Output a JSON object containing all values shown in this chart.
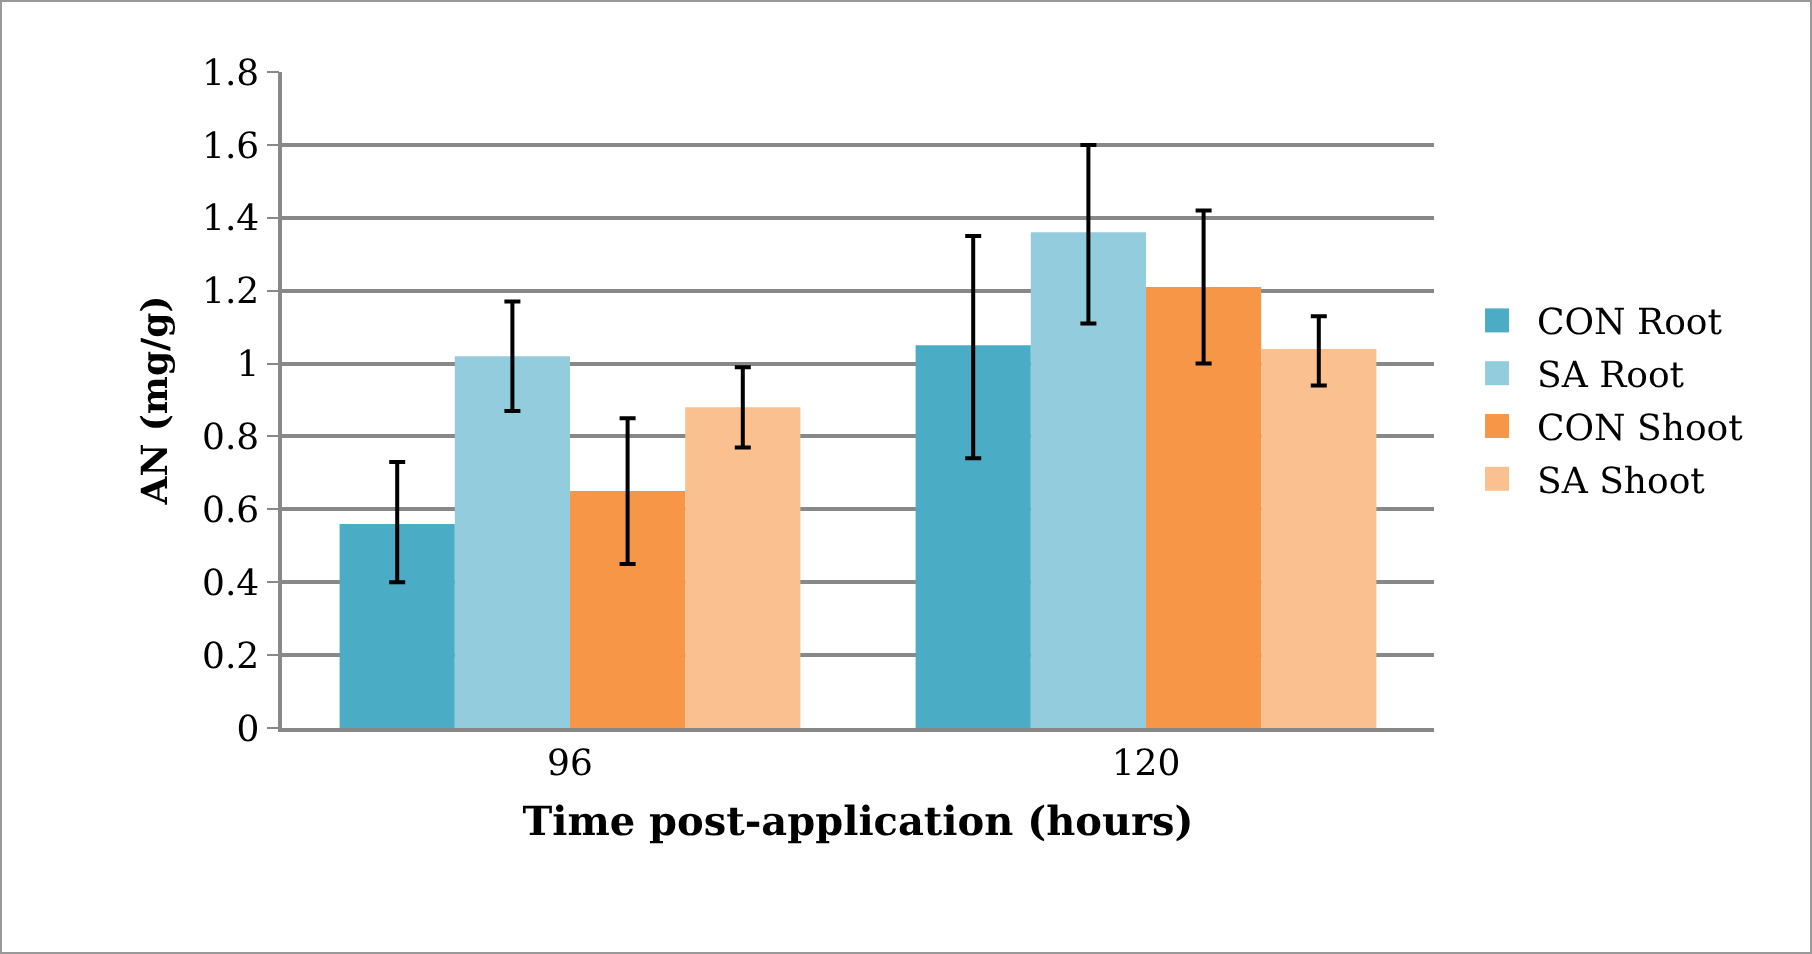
{
  "chart_data": {
    "type": "bar",
    "xlabel": "Time post-application (hours)",
    "ylabel": "AN (mg/g)",
    "categories": [
      "96",
      "120"
    ],
    "series": [
      {
        "name": "CON Root",
        "color": "#4bacc6",
        "values": [
          0.56,
          1.05
        ],
        "errors": [
          [
            0.4,
            0.73
          ],
          [
            0.74,
            1.35
          ]
        ]
      },
      {
        "name": "SA Root",
        "color": "#93cddd",
        "values": [
          1.02,
          1.36
        ],
        "errors": [
          [
            0.87,
            1.17
          ],
          [
            1.11,
            1.6
          ]
        ]
      },
      {
        "name": "CON Shoot",
        "color": "#f79646",
        "values": [
          0.65,
          1.21
        ],
        "errors": [
          [
            0.45,
            0.85
          ],
          [
            1.0,
            1.42
          ]
        ]
      },
      {
        "name": "SA Shoot",
        "color": "#fac090",
        "values": [
          0.88,
          1.04
        ],
        "errors": [
          [
            0.77,
            0.99
          ],
          [
            0.94,
            1.13
          ]
        ]
      }
    ],
    "ylim": [
      0,
      1.8
    ],
    "yticks": [
      0,
      0.2,
      0.4,
      0.6,
      0.8,
      1,
      1.2,
      1.4,
      1.6,
      1.8
    ],
    "grid": "y",
    "legend": "right"
  }
}
